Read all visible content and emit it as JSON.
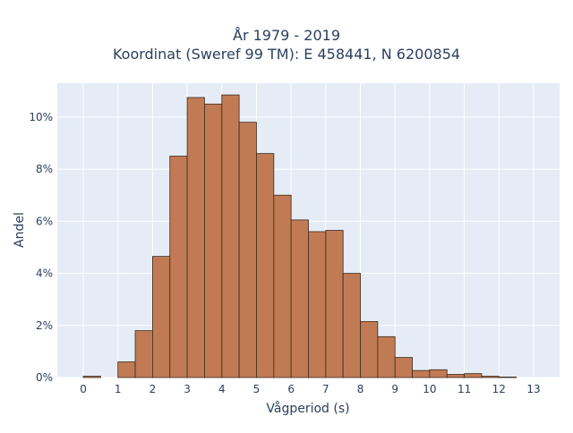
{
  "chart_data": {
    "type": "bar",
    "title": "År 1979 - 2019",
    "subtitle": "Koordinat (Sweref 99 TM): E 458441, N 6200854",
    "xlabel": "Vågperiod (s)",
    "ylabel": "Andel",
    "x_ticks": [
      "0",
      "1",
      "2",
      "3",
      "4",
      "5",
      "6",
      "7",
      "8",
      "9",
      "10",
      "11",
      "12",
      "13"
    ],
    "y_ticks": [
      "0%",
      "2%",
      "4%",
      "6%",
      "8%",
      "10%"
    ],
    "xlim": [
      -0.75,
      13.75
    ],
    "ylim": [
      0,
      11.3
    ],
    "bin_width": 0.5,
    "bin_starts": [
      0,
      0.5,
      1,
      1.5,
      2,
      2.5,
      3,
      3.5,
      4,
      4.5,
      5,
      5.5,
      6,
      6.5,
      7,
      7.5,
      8,
      8.5,
      9,
      9.5,
      10,
      10.5,
      11,
      11.5,
      12,
      12.5
    ],
    "values": [
      0.05,
      0,
      0.6,
      1.8,
      4.65,
      8.5,
      10.75,
      10.5,
      10.85,
      9.8,
      8.6,
      7.0,
      6.05,
      5.6,
      5.65,
      4.0,
      2.15,
      1.57,
      0.77,
      0.27,
      0.3,
      0.12,
      0.15,
      0.05,
      0.02,
      0
    ],
    "value_unit": "%",
    "grid": true,
    "colors": {
      "bar_fill": "#c17b54",
      "bar_stroke": "#3b2a1e",
      "plot_bg": "#e5ecf6",
      "grid": "#ffffff"
    }
  }
}
